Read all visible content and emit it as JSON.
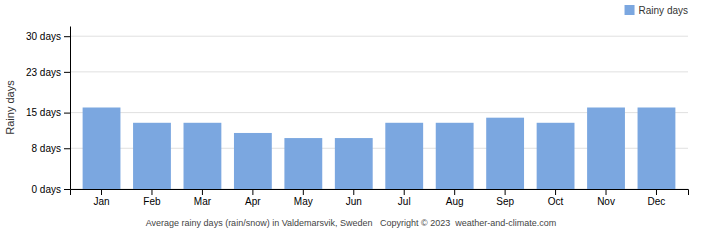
{
  "chart_data": {
    "type": "bar",
    "categories": [
      "Jan",
      "Feb",
      "Mar",
      "Apr",
      "May",
      "Jun",
      "Jul",
      "Aug",
      "Sep",
      "Oct",
      "Nov",
      "Dec"
    ],
    "series": [
      {
        "name": "Rainy days",
        "color": "#7ba7e0",
        "values": [
          16,
          13,
          13,
          11,
          10,
          10,
          13,
          13,
          14,
          13,
          16,
          16
        ]
      }
    ],
    "ylabel": "Rainy days",
    "ylim": [
      0,
      32
    ],
    "yticks": [
      {
        "value": 0,
        "label": "0 days"
      },
      {
        "value": 8,
        "label": "8 days"
      },
      {
        "value": 15,
        "label": "15 days"
      },
      {
        "value": 23,
        "label": "23 days"
      },
      {
        "value": 30,
        "label": "30 days"
      }
    ],
    "grid": true,
    "legend": "upper right",
    "annotations": [
      "Average rainy days (rain/snow) in Valdemarsvik, Sweden   Copyright © 2023  weather-and-climate.com"
    ]
  }
}
